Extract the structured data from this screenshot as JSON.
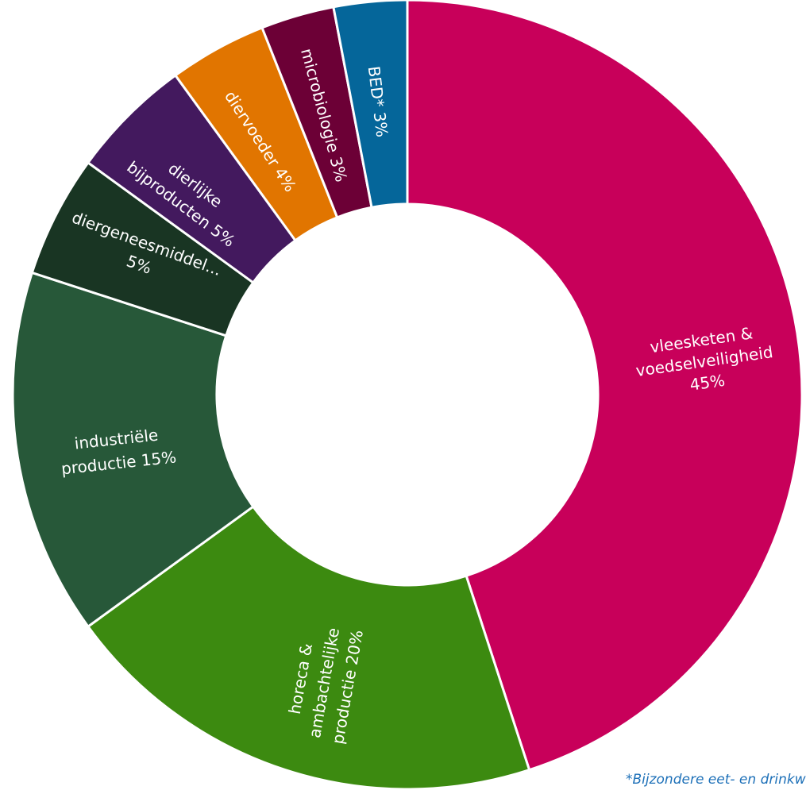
{
  "chart_data": {
    "type": "pie",
    "variant": "donut",
    "slices": [
      {
        "lines": [
          "vleesketen &",
          "voedselveiligheid",
          "45%"
        ],
        "value": 45,
        "color": "#c8005a"
      },
      {
        "lines": [
          "horeca &",
          "ambachtelijke",
          "productie 20%"
        ],
        "value": 20,
        "color": "#3c8a10"
      },
      {
        "lines": [
          "industriële",
          "productie 15%"
        ],
        "value": 15,
        "color": "#275839"
      },
      {
        "lines": [
          "diergeneesmiddel...",
          "5%"
        ],
        "value": 5,
        "color": "#193523"
      },
      {
        "lines": [
          "dierlijke",
          "bijproducten 5%"
        ],
        "value": 5,
        "color": "#43195e"
      },
      {
        "lines": [
          "diervoeder 4%"
        ],
        "value": 4,
        "color": "#e17500"
      },
      {
        "lines": [
          "microbiologie 3%"
        ],
        "value": 3,
        "color": "#6c0036"
      },
      {
        "lines": [
          "BED* 3%"
        ],
        "value": 3,
        "color": "#05669a"
      }
    ]
  },
  "footnote": "*Bijzondere eet- en drinkwaren"
}
